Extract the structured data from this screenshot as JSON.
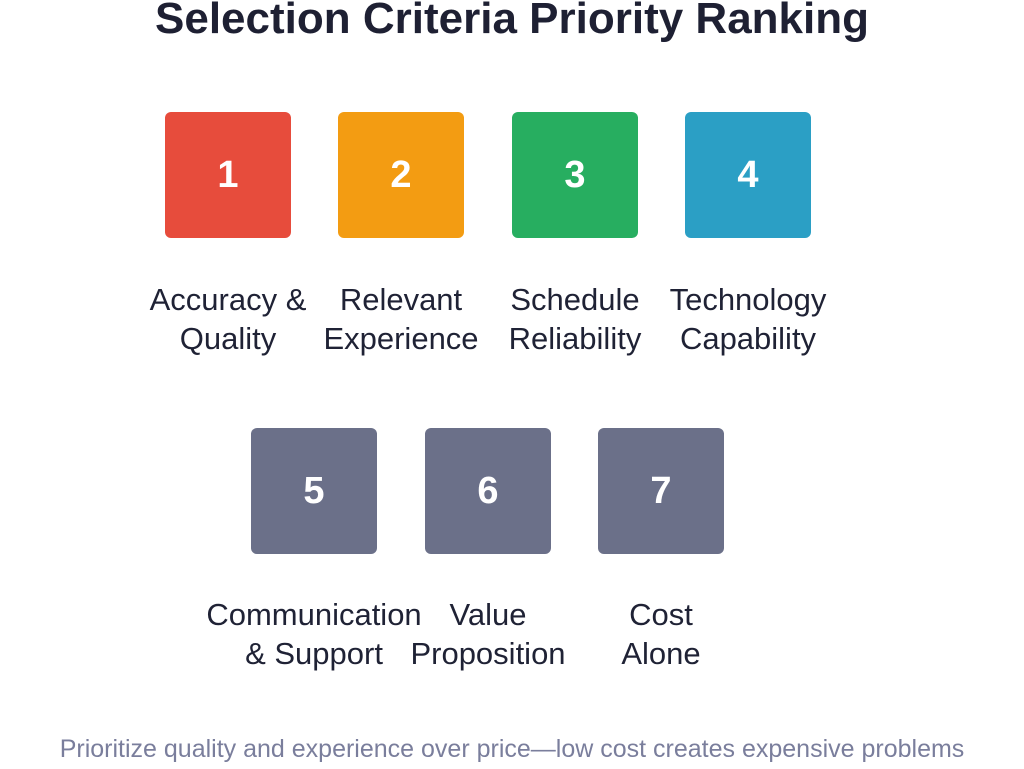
{
  "title": "Selection Criteria Priority Ranking",
  "colors": {
    "rank1": "#e74c3c",
    "rank2": "#f39c12",
    "rank3": "#27ae60",
    "rank4": "#2b9fc5",
    "other": "#6b7089"
  },
  "criteria": [
    {
      "rank": "1",
      "line1": "Accuracy &",
      "line2": "Quality"
    },
    {
      "rank": "2",
      "line1": "Relevant",
      "line2": "Experience"
    },
    {
      "rank": "3",
      "line1": "Schedule",
      "line2": "Reliability"
    },
    {
      "rank": "4",
      "line1": "Technology",
      "line2": "Capability"
    },
    {
      "rank": "5",
      "line1": "Communication",
      "line2": "& Support"
    },
    {
      "rank": "6",
      "line1": "Value",
      "line2": "Proposition"
    },
    {
      "rank": "7",
      "line1": "Cost",
      "line2": "Alone"
    }
  ],
  "footer": "Prioritize quality and experience over price—low cost creates expensive problems"
}
